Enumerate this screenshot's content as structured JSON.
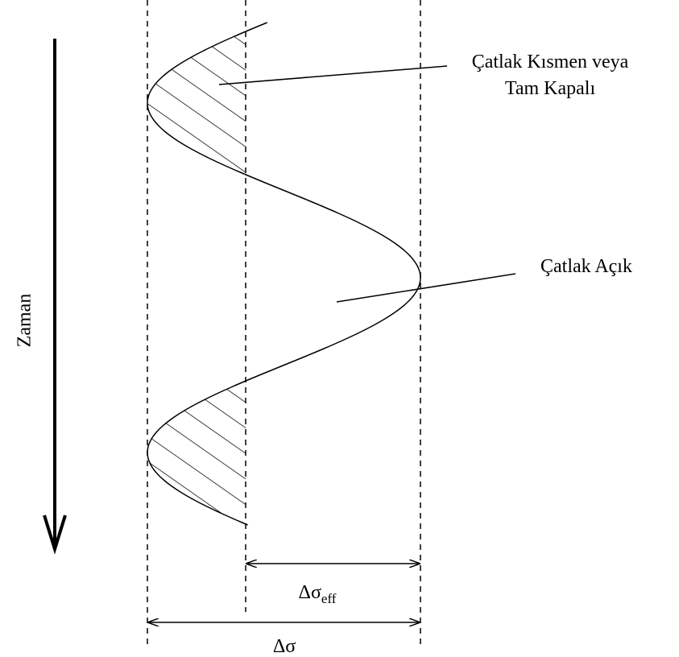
{
  "labels": {
    "closed_line1": "Çatlak Kısmen veya",
    "closed_line2": "Tam Kapalı",
    "open": "Çatlak Açık",
    "time": "Zaman"
  },
  "dimensions": {
    "effective": {
      "base": "Δσ",
      "sub": "eff"
    },
    "full": "Δσ"
  }
}
